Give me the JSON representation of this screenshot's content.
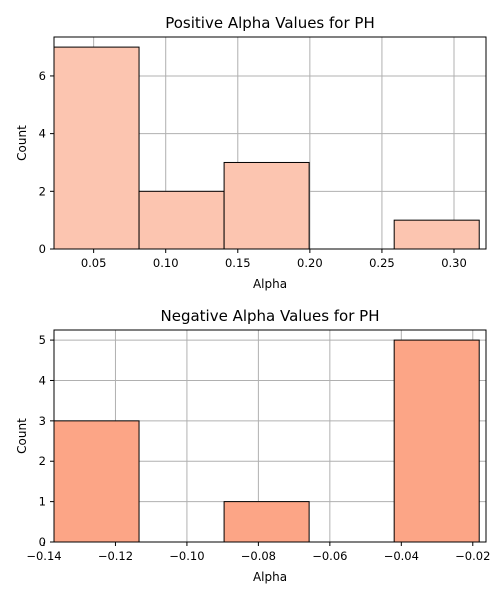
{
  "chart_data": [
    {
      "type": "bar",
      "title": "Positive Alpha Values for PH",
      "xlabel": "Alpha",
      "ylabel": "Count",
      "xlim": [
        0.0225,
        0.3222
      ],
      "ylim": [
        0,
        7.35
      ],
      "xticks": [
        0.05,
        0.1,
        0.15,
        0.2,
        0.25,
        0.3
      ],
      "xtick_labels": [
        "0.05",
        "0.10",
        "0.15",
        "0.20",
        "0.25",
        "0.30"
      ],
      "yticks": [
        0,
        2,
        4,
        6
      ],
      "ytick_labels": [
        "0",
        "2",
        "4",
        "6"
      ],
      "grid": true,
      "bar_color": "#fcc5b0",
      "bins": [
        {
          "x0": 0.0225,
          "x1": 0.0815,
          "value": 7
        },
        {
          "x0": 0.0815,
          "x1": 0.1405,
          "value": 2
        },
        {
          "x0": 0.1405,
          "x1": 0.1995,
          "value": 3
        },
        {
          "x0": 0.1995,
          "x1": 0.2585,
          "value": 0
        },
        {
          "x0": 0.2585,
          "x1": 0.3175,
          "value": 1
        }
      ]
    },
    {
      "type": "bar",
      "title": "Negative Alpha Values for PH",
      "xlabel": "Alpha",
      "ylabel": "Count",
      "xlim": [
        -0.1372,
        -0.0163
      ],
      "ylim": [
        0,
        5.25
      ],
      "xticks": [
        -0.14,
        -0.12,
        -0.1,
        -0.08,
        -0.06,
        -0.04,
        -0.02
      ],
      "xtick_labels": [
        "−0.14",
        "−0.12",
        "−0.10",
        "−0.08",
        "−0.06",
        "−0.04",
        "−0.02"
      ],
      "yticks": [
        0,
        1,
        2,
        3,
        4,
        5
      ],
      "ytick_labels": [
        "0",
        "1",
        "2",
        "3",
        "4",
        "5"
      ],
      "grid": true,
      "bar_color": "#fca586",
      "bins": [
        {
          "x0": -0.1372,
          "x1": -0.1134,
          "value": 3
        },
        {
          "x0": -0.1134,
          "x1": -0.0896,
          "value": 0
        },
        {
          "x0": -0.0896,
          "x1": -0.0658,
          "value": 1
        },
        {
          "x0": -0.0658,
          "x1": -0.042,
          "value": 0
        },
        {
          "x0": -0.042,
          "x1": -0.0182,
          "value": 5
        }
      ]
    }
  ]
}
